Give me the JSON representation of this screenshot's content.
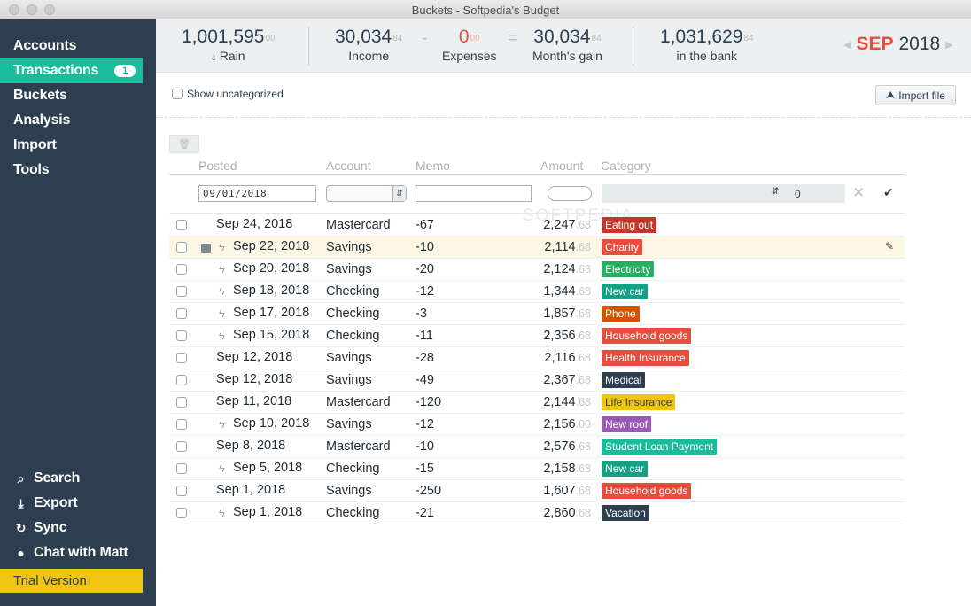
{
  "window": {
    "title": "Buckets - Softpedia's Budget"
  },
  "sidebar": {
    "items": [
      {
        "label": "Accounts"
      },
      {
        "label": "Transactions",
        "badge": "1",
        "active": true
      },
      {
        "label": "Buckets"
      },
      {
        "label": "Analysis"
      },
      {
        "label": "Import"
      },
      {
        "label": "Tools"
      }
    ],
    "bottom": [
      {
        "label": "Search",
        "icon": "search-icon",
        "glyph": "⌕"
      },
      {
        "label": "Export",
        "icon": "download-icon",
        "glyph": "⤓"
      },
      {
        "label": "Sync",
        "icon": "sync-icon",
        "glyph": "↻"
      },
      {
        "label": "Chat with Matt",
        "icon": "chat-icon",
        "glyph": "●"
      }
    ],
    "trial": "Trial Version"
  },
  "summary": {
    "rain": {
      "value": "1,001,595",
      "cents": "00",
      "label": "Rain",
      "icon": "drop-icon"
    },
    "income": {
      "value": "30,034",
      "cents": "84",
      "label": "Income"
    },
    "minus": "-",
    "expenses": {
      "value": "0",
      "cents": "00",
      "label": "Expenses"
    },
    "equals": "=",
    "gain": {
      "value": "30,034",
      "cents": "84",
      "label": "Month's gain"
    },
    "bank": {
      "value": "1,031,629",
      "cents": "84",
      "label": "in the bank"
    },
    "month": "SEP",
    "year": "2018"
  },
  "toolbar": {
    "show_uncategorized": "Show uncategorized",
    "import_file": "Import file"
  },
  "table": {
    "headers": {
      "posted": "Posted",
      "account": "Account",
      "memo": "Memo",
      "amount": "Amount",
      "category": "Category"
    },
    "filter": {
      "date": "09/01/2018",
      "category_value": "0"
    },
    "rows": [
      {
        "date": "Sep 24, 2018",
        "bolt": false,
        "account": "Mastercard",
        "memo": "-67",
        "amount": "2,247",
        "cents": ".68",
        "category": "Eating out",
        "color": "#c0392b"
      },
      {
        "date": "Sep 22, 2018",
        "bolt": true,
        "note": true,
        "highlight": true,
        "account": "Savings",
        "memo": "-10",
        "amount": "2,114",
        "cents": ".68",
        "category": "Charity",
        "color": "#e74c3c"
      },
      {
        "date": "Sep 20, 2018",
        "bolt": true,
        "account": "Savings",
        "memo": "-20",
        "amount": "2,124",
        "cents": ".68",
        "category": "Electricity",
        "color": "#27ae60"
      },
      {
        "date": "Sep 18, 2018",
        "bolt": true,
        "account": "Checking",
        "memo": "-12",
        "amount": "1,344",
        "cents": ".68",
        "category": "New car",
        "color": "#16a085"
      },
      {
        "date": "Sep 17, 2018",
        "bolt": true,
        "account": "Checking",
        "memo": "-3",
        "amount": "1,857",
        "cents": ".68",
        "category": "Phone",
        "color": "#d35400"
      },
      {
        "date": "Sep 15, 2018",
        "bolt": true,
        "account": "Checking",
        "memo": "-11",
        "amount": "2,356",
        "cents": ".68",
        "category": "Household goods",
        "color": "#e74c3c"
      },
      {
        "date": "Sep 12, 2018",
        "bolt": false,
        "account": "Savings",
        "memo": "-28",
        "amount": "2,116",
        "cents": ".68",
        "category": "Health Insurance",
        "color": "#e74c3c"
      },
      {
        "date": "Sep 12, 2018",
        "bolt": false,
        "account": "Savings",
        "memo": "-49",
        "amount": "2,367",
        "cents": ".68",
        "category": "Medical",
        "color": "#2c3e50"
      },
      {
        "date": "Sep 11, 2018",
        "bolt": false,
        "account": "Mastercard",
        "memo": "-120",
        "amount": "2,144",
        "cents": ".68",
        "category": "Life Insurance",
        "color": "#f1c40f",
        "darkText": true
      },
      {
        "date": "Sep 10, 2018",
        "bolt": true,
        "account": "Savings",
        "memo": "-12",
        "amount": "2,156",
        "cents": ".00",
        "category": "New roof",
        "color": "#9b59b6"
      },
      {
        "date": "Sep 8, 2018",
        "bolt": false,
        "account": "Mastercard",
        "memo": "-10",
        "amount": "2,576",
        "cents": ".68",
        "category": "Student Loan Payment",
        "color": "#1abc9c"
      },
      {
        "date": "Sep 5, 2018",
        "bolt": true,
        "account": "Checking",
        "memo": "-15",
        "amount": "2,158",
        "cents": ".68",
        "category": "New car",
        "color": "#16a085"
      },
      {
        "date": "Sep 1, 2018",
        "bolt": false,
        "account": "Savings",
        "memo": "-250",
        "amount": "1,607",
        "cents": ".68",
        "category": "Household goods",
        "color": "#e74c3c"
      },
      {
        "date": "Sep 1, 2018",
        "bolt": true,
        "account": "Checking",
        "memo": "-21",
        "amount": "2,860",
        "cents": ".68",
        "category": "Vacation",
        "color": "#2c3e50"
      }
    ]
  },
  "watermark": "SOFTPEDIA"
}
